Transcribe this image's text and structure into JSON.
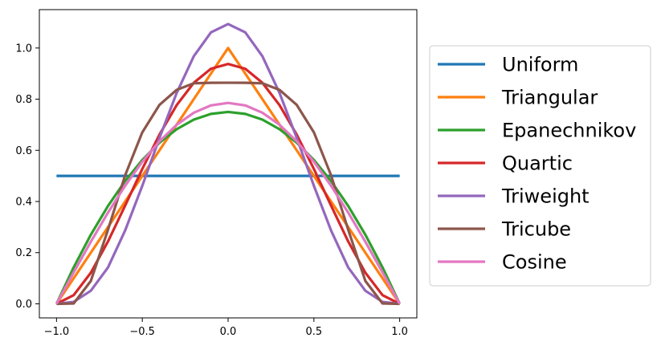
{
  "chart_data": {
    "type": "line",
    "title": "",
    "xlabel": "",
    "ylabel": "",
    "xlim": [
      -1.1,
      1.1
    ],
    "ylim": [
      -0.055,
      1.15
    ],
    "xticks": [
      -1.0,
      -0.5,
      0.0,
      0.5,
      1.0
    ],
    "xtick_labels": [
      "−1.0",
      "−0.5",
      "0.0",
      "0.5",
      "1.0"
    ],
    "yticks": [
      0.0,
      0.2,
      0.4,
      0.6,
      0.8,
      1.0
    ],
    "ytick_labels": [
      "0.0",
      "0.2",
      "0.4",
      "0.6",
      "0.8",
      "1.0"
    ],
    "grid": false,
    "legend_position": "right, outside plot",
    "x": [
      -1.0,
      -0.9,
      -0.8,
      -0.7,
      -0.6,
      -0.5,
      -0.4,
      -0.3,
      -0.2,
      -0.1,
      0.0,
      0.1,
      0.2,
      0.3,
      0.4,
      0.5,
      0.6,
      0.7,
      0.8,
      0.9,
      1.0
    ],
    "series": [
      {
        "name": "Uniform",
        "color": "#1f77b4",
        "values": [
          0.5,
          0.5,
          0.5,
          0.5,
          0.5,
          0.5,
          0.5,
          0.5,
          0.5,
          0.5,
          0.5,
          0.5,
          0.5,
          0.5,
          0.5,
          0.5,
          0.5,
          0.5,
          0.5,
          0.5,
          0.5
        ]
      },
      {
        "name": "Triangular",
        "color": "#ff7f0e",
        "values": [
          0.0,
          0.1,
          0.2,
          0.3,
          0.4,
          0.5,
          0.6,
          0.7,
          0.8,
          0.9,
          1.0,
          0.9,
          0.8,
          0.7,
          0.6,
          0.5,
          0.4,
          0.3,
          0.2,
          0.1,
          0.0
        ]
      },
      {
        "name": "Epanechnikov",
        "color": "#2ca02c",
        "values": [
          0.0,
          0.1425,
          0.27,
          0.3825,
          0.48,
          0.5625,
          0.63,
          0.6825,
          0.72,
          0.7425,
          0.75,
          0.7425,
          0.72,
          0.6825,
          0.63,
          0.5625,
          0.48,
          0.3825,
          0.27,
          0.1425,
          0.0
        ]
      },
      {
        "name": "Quartic",
        "color": "#d62728",
        "values": [
          0.0,
          0.0339,
          0.1215,
          0.2438,
          0.384,
          0.5273,
          0.6615,
          0.7765,
          0.864,
          0.919,
          0.9375,
          0.919,
          0.864,
          0.7765,
          0.6615,
          0.5273,
          0.384,
          0.2438,
          0.1215,
          0.0339,
          0.0
        ]
      },
      {
        "name": "Triweight",
        "color": "#9467bd",
        "values": [
          0.0,
          0.0075,
          0.051,
          0.1421,
          0.2867,
          0.4614,
          0.6484,
          0.8237,
          0.9677,
          1.0612,
          1.09375,
          1.0612,
          0.9677,
          0.8237,
          0.6484,
          0.4614,
          0.2867,
          0.1421,
          0.051,
          0.0075,
          0.0
        ]
      },
      {
        "name": "Tricube",
        "color": "#8c564b",
        "values": [
          0.0,
          0.0014,
          0.0894,
          0.2896,
          0.5025,
          0.6704,
          0.7777,
          0.8362,
          0.862,
          0.864,
          0.8642,
          0.864,
          0.862,
          0.8362,
          0.7777,
          0.6704,
          0.5025,
          0.2896,
          0.0894,
          0.0014,
          0.0
        ]
      },
      {
        "name": "Cosine",
        "color": "#e377c2",
        "values": [
          0.0,
          0.1229,
          0.2427,
          0.3566,
          0.4617,
          0.5554,
          0.6354,
          0.6998,
          0.747,
          0.7757,
          0.7854,
          0.7757,
          0.747,
          0.6998,
          0.6354,
          0.5554,
          0.4617,
          0.3566,
          0.2427,
          0.1229,
          0.0
        ]
      }
    ]
  }
}
